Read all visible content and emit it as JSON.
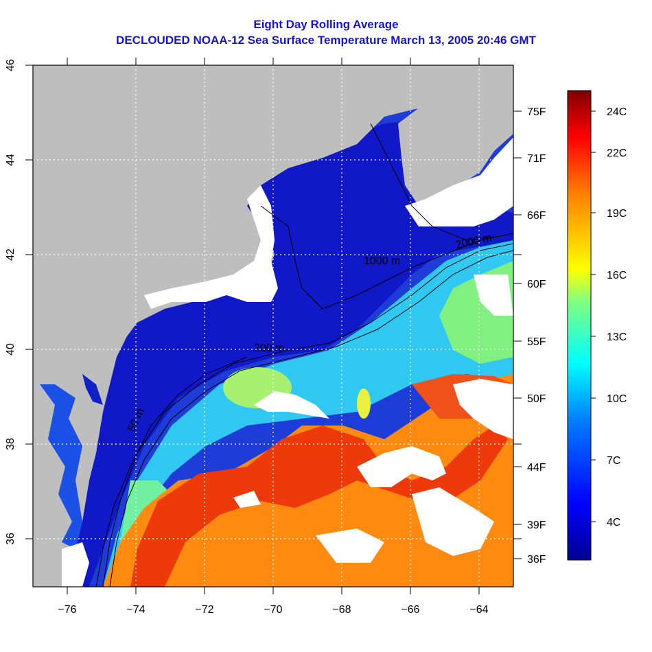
{
  "title_line1": "Eight Day Rolling Average",
  "title_line2": "DECLOUDED NOAA-12 Sea Surface Temperature March 13, 2005 20:46 GMT",
  "map": {
    "lon_range": [
      -77,
      -63
    ],
    "lat_range": [
      35,
      46
    ],
    "lon_ticks": [
      {
        "value": -76,
        "label": "−76"
      },
      {
        "value": -74,
        "label": "−74"
      },
      {
        "value": -72,
        "label": "−72"
      },
      {
        "value": -70,
        "label": "−70"
      },
      {
        "value": -68,
        "label": "−68"
      },
      {
        "value": -66,
        "label": "−66"
      },
      {
        "value": -64,
        "label": "−64"
      }
    ],
    "lat_ticks": [
      {
        "value": 36,
        "label": "36"
      },
      {
        "value": 38,
        "label": "38"
      },
      {
        "value": 40,
        "label": "40"
      },
      {
        "value": 42,
        "label": "42"
      },
      {
        "value": 44,
        "label": "44"
      },
      {
        "value": 46,
        "label": "46"
      }
    ],
    "right_ticks_f": [
      {
        "label": "75F"
      },
      {
        "label": "71F"
      },
      {
        "label": "66F"
      },
      {
        "label": "60F"
      },
      {
        "label": "55F"
      },
      {
        "label": "50F"
      },
      {
        "label": "44F"
      },
      {
        "label": "39F"
      },
      {
        "label": "36F"
      }
    ],
    "contour_labels": [
      "50 m",
      "200 m",
      "1000 m",
      "2000 m"
    ],
    "colors": {
      "land": "#bebebe",
      "cloud": "#ffffff",
      "grid": "#ffffff"
    }
  },
  "colorbar": {
    "labels_c": [
      "24C",
      "22C",
      "19C",
      "16C",
      "13C",
      "10C",
      "7C",
      "4C"
    ],
    "colors": [
      "#00008f",
      "#0000ff",
      "#0080ff",
      "#00ffff",
      "#80ff80",
      "#ffff00",
      "#ff8000",
      "#ff0000",
      "#800000"
    ]
  }
}
